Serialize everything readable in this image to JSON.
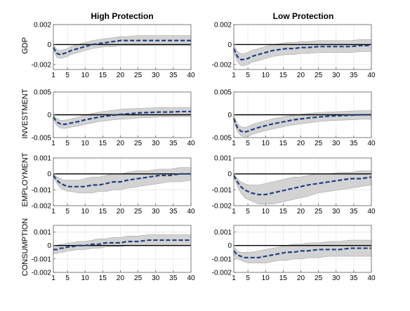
{
  "columns": [
    {
      "title": "High Protection"
    },
    {
      "title": "Low Protection"
    }
  ],
  "rows": [
    {
      "label": "GDP"
    },
    {
      "label": "INVESTMENT"
    },
    {
      "label": "EMPLOYMENT"
    },
    {
      "label": "CONSUMPTION"
    }
  ],
  "colors": {
    "band": "#d3d3d3",
    "band_edge": "#a9a9a9",
    "line": "#1f3f80",
    "zero_line": "#000000",
    "grid": "#e6e6e6",
    "axis": "#606060"
  },
  "chart_data": [
    {
      "type": "area",
      "panel": "GDP / High Protection",
      "row": 0,
      "col": 0,
      "xlim": [
        1,
        40
      ],
      "ylim": [
        -0.0025,
        0.002
      ],
      "xticks": [
        1,
        5,
        10,
        15,
        20,
        25,
        30,
        35,
        40
      ],
      "yticks": [
        -0.002,
        0,
        0.002
      ],
      "ytick_labels": [
        "-0.002",
        "0",
        "0.002"
      ],
      "grid": true,
      "x": [
        1,
        2,
        3,
        4,
        5,
        6,
        8,
        10,
        12,
        14,
        16,
        18,
        20,
        22,
        25,
        28,
        31,
        34,
        37,
        40
      ],
      "series": [
        {
          "role": "median",
          "values": [
            -0.0003,
            -0.0009,
            -0.001,
            -0.0009,
            -0.0008,
            -0.0006,
            -0.0004,
            -0.0002,
            0.0,
            0.0001,
            0.0002,
            0.0003,
            0.0004,
            0.0004,
            0.0004,
            0.0004,
            0.0004,
            0.0004,
            0.0004,
            0.0004
          ]
        },
        {
          "role": "upper",
          "values": [
            0.0,
            -0.0005,
            -0.0006,
            -0.0005,
            -0.0004,
            -0.0002,
            0.0,
            0.0002,
            0.0004,
            0.0005,
            0.0006,
            0.0007,
            0.0008,
            0.0008,
            0.0009,
            0.0009,
            0.0009,
            0.0009,
            0.0009,
            0.0009
          ]
        },
        {
          "role": "lower",
          "values": [
            -0.0006,
            -0.0013,
            -0.0014,
            -0.0013,
            -0.0012,
            -0.001,
            -0.0008,
            -0.0006,
            -0.0004,
            -0.0003,
            -0.0002,
            -0.0002,
            -0.0001,
            -0.0001,
            -0.0001,
            -0.0001,
            -0.0001,
            -0.0001,
            -0.0001,
            -0.0001
          ]
        }
      ]
    },
    {
      "type": "area",
      "panel": "GDP / Low Protection",
      "row": 0,
      "col": 1,
      "xlim": [
        1,
        40
      ],
      "ylim": [
        -0.0025,
        0.002
      ],
      "xticks": [
        1,
        5,
        10,
        15,
        20,
        25,
        30,
        35,
        40
      ],
      "yticks": [
        -0.002,
        0,
        0.002
      ],
      "ytick_labels": [
        "-0.002",
        "0",
        "0.002"
      ],
      "grid": true,
      "x": [
        1,
        2,
        3,
        4,
        5,
        6,
        8,
        10,
        12,
        14,
        16,
        18,
        20,
        22,
        25,
        28,
        31,
        34,
        37,
        40
      ],
      "series": [
        {
          "role": "median",
          "values": [
            -0.0004,
            -0.0012,
            -0.0015,
            -0.0015,
            -0.0014,
            -0.0012,
            -0.001,
            -0.0008,
            -0.0006,
            -0.0005,
            -0.0004,
            -0.0004,
            -0.0003,
            -0.0003,
            -0.0002,
            -0.0002,
            -0.0002,
            -0.0002,
            -0.0001,
            -0.0001
          ]
        },
        {
          "role": "upper",
          "values": [
            0.0,
            -0.0007,
            -0.0009,
            -0.0009,
            -0.0008,
            -0.0006,
            -0.0004,
            -0.0002,
            0.0,
            0.0001,
            0.0002,
            0.0002,
            0.0003,
            0.0003,
            0.0004,
            0.0004,
            0.0004,
            0.0004,
            0.0005,
            0.0005
          ]
        },
        {
          "role": "lower",
          "values": [
            -0.0008,
            -0.0017,
            -0.0021,
            -0.0021,
            -0.002,
            -0.0018,
            -0.0016,
            -0.0014,
            -0.0012,
            -0.0011,
            -0.001,
            -0.001,
            -0.0009,
            -0.0009,
            -0.0008,
            -0.0008,
            -0.0008,
            -0.0008,
            -0.0007,
            -0.0007
          ]
        }
      ]
    },
    {
      "type": "area",
      "panel": "INVESTMENT / High Protection",
      "row": 1,
      "col": 0,
      "xlim": [
        1,
        40
      ],
      "ylim": [
        -0.005,
        0.005
      ],
      "xticks": [
        1,
        5,
        10,
        15,
        20,
        25,
        30,
        35,
        40
      ],
      "yticks": [
        -0.005,
        0,
        0.005
      ],
      "ytick_labels": [
        "-0.005",
        "0",
        "0.005"
      ],
      "grid": true,
      "x": [
        1,
        2,
        3,
        4,
        5,
        6,
        8,
        10,
        12,
        14,
        16,
        18,
        20,
        22,
        25,
        28,
        31,
        34,
        37,
        40
      ],
      "series": [
        {
          "role": "median",
          "values": [
            -0.0005,
            -0.0016,
            -0.002,
            -0.0021,
            -0.002,
            -0.0018,
            -0.0015,
            -0.0011,
            -0.0008,
            -0.0005,
            -0.0003,
            -0.0001,
            0.0001,
            0.0002,
            0.0004,
            0.0005,
            0.0006,
            0.0006,
            0.0007,
            0.0007
          ]
        },
        {
          "role": "upper",
          "values": [
            0.0,
            -0.0008,
            -0.0012,
            -0.0012,
            -0.0011,
            -0.0009,
            -0.0005,
            -0.0001,
            0.0003,
            0.0006,
            0.0008,
            0.001,
            0.0012,
            0.0013,
            0.0014,
            0.0015,
            0.0016,
            0.0016,
            0.0016,
            0.0016
          ]
        },
        {
          "role": "lower",
          "values": [
            -0.001,
            -0.0024,
            -0.0029,
            -0.003,
            -0.0029,
            -0.0027,
            -0.0025,
            -0.0021,
            -0.0018,
            -0.0015,
            -0.0013,
            -0.0011,
            -0.001,
            -0.0009,
            -0.0007,
            -0.0006,
            -0.0005,
            -0.0005,
            -0.0004,
            -0.0004
          ]
        }
      ]
    },
    {
      "type": "area",
      "panel": "INVESTMENT / Low Protection",
      "row": 1,
      "col": 1,
      "xlim": [
        1,
        40
      ],
      "ylim": [
        -0.005,
        0.005
      ],
      "xticks": [
        1,
        5,
        10,
        15,
        20,
        25,
        30,
        35,
        40
      ],
      "yticks": [
        -0.005,
        0,
        0.005
      ],
      "ytick_labels": [
        "-0.005",
        "0",
        "0.005"
      ],
      "grid": true,
      "x": [
        1,
        2,
        3,
        4,
        5,
        6,
        8,
        10,
        12,
        14,
        16,
        18,
        20,
        22,
        25,
        28,
        31,
        34,
        37,
        40
      ],
      "series": [
        {
          "role": "median",
          "values": [
            -0.0008,
            -0.0028,
            -0.0036,
            -0.0038,
            -0.0036,
            -0.0033,
            -0.0028,
            -0.0024,
            -0.002,
            -0.0017,
            -0.0014,
            -0.0011,
            -0.0009,
            -0.0007,
            -0.0005,
            -0.0003,
            -0.0002,
            -0.0001,
            0.0,
            0.0
          ]
        },
        {
          "role": "upper",
          "values": [
            -0.0002,
            -0.0019,
            -0.0026,
            -0.0028,
            -0.0026,
            -0.0022,
            -0.0017,
            -0.0013,
            -0.0009,
            -0.0006,
            -0.0003,
            -0.0001,
            0.0001,
            0.0003,
            0.0005,
            0.0006,
            0.0007,
            0.0008,
            0.0009,
            0.0009
          ]
        },
        {
          "role": "lower",
          "values": [
            -0.0014,
            -0.0037,
            -0.0046,
            -0.0048,
            -0.0047,
            -0.0044,
            -0.0039,
            -0.0035,
            -0.0031,
            -0.0028,
            -0.0025,
            -0.0022,
            -0.002,
            -0.0018,
            -0.0015,
            -0.0013,
            -0.0012,
            -0.0011,
            -0.001,
            -0.001
          ]
        }
      ]
    },
    {
      "type": "area",
      "panel": "EMPLOYMENT / High Protection",
      "row": 2,
      "col": 0,
      "xlim": [
        1,
        40
      ],
      "ylim": [
        -0.002,
        0.001
      ],
      "xticks": [
        1,
        5,
        10,
        15,
        20,
        25,
        30,
        35,
        40
      ],
      "yticks": [
        -0.002,
        -0.001,
        0,
        0.001
      ],
      "ytick_labels": [
        "-0.002",
        "-0.001",
        "0",
        "0.001"
      ],
      "grid": true,
      "x": [
        1,
        2,
        3,
        4,
        5,
        6,
        8,
        10,
        12,
        14,
        16,
        18,
        20,
        22,
        25,
        28,
        31,
        34,
        37,
        40
      ],
      "series": [
        {
          "role": "median",
          "values": [
            -0.0001,
            -0.0004,
            -0.0006,
            -0.0007,
            -0.0008,
            -0.0008,
            -0.0008,
            -0.0008,
            -0.0007,
            -0.0007,
            -0.0006,
            -0.0005,
            -0.0005,
            -0.0004,
            -0.0003,
            -0.0002,
            -0.0001,
            -0.0001,
            0.0,
            0.0
          ]
        },
        {
          "role": "upper",
          "values": [
            0.0,
            -0.0002,
            -0.0003,
            -0.0004,
            -0.0004,
            -0.0004,
            -0.0004,
            -0.0003,
            -0.0002,
            -0.0002,
            -0.0001,
            0.0,
            0.0,
            0.0001,
            0.0002,
            0.0002,
            0.0003,
            0.0003,
            0.0004,
            0.0004
          ]
        },
        {
          "role": "lower",
          "values": [
            -0.0002,
            -0.0006,
            -0.0009,
            -0.001,
            -0.0011,
            -0.0011,
            -0.0012,
            -0.0012,
            -0.0012,
            -0.0011,
            -0.0011,
            -0.001,
            -0.001,
            -0.0009,
            -0.0008,
            -0.0007,
            -0.0006,
            -0.0005,
            -0.0005,
            -0.0004
          ]
        }
      ]
    },
    {
      "type": "area",
      "panel": "EMPLOYMENT / Low Protection",
      "row": 2,
      "col": 1,
      "xlim": [
        1,
        40
      ],
      "ylim": [
        -0.002,
        0.001
      ],
      "xticks": [
        1,
        5,
        10,
        15,
        20,
        25,
        30,
        35,
        40
      ],
      "yticks": [
        -0.002,
        -0.001,
        0,
        0.001
      ],
      "ytick_labels": [
        "-0.002",
        "-0.001",
        "0",
        "0.001"
      ],
      "grid": true,
      "x": [
        1,
        2,
        3,
        4,
        5,
        6,
        8,
        10,
        12,
        14,
        16,
        18,
        20,
        22,
        25,
        28,
        31,
        34,
        37,
        40
      ],
      "series": [
        {
          "role": "median",
          "values": [
            -0.0001,
            -0.0005,
            -0.0008,
            -0.001,
            -0.0011,
            -0.0012,
            -0.0013,
            -0.0013,
            -0.0012,
            -0.0011,
            -0.001,
            -0.0009,
            -0.0008,
            -0.0007,
            -0.0006,
            -0.0005,
            -0.0004,
            -0.0003,
            -0.0003,
            -0.0002
          ]
        },
        {
          "role": "upper",
          "values": [
            0.0,
            -0.0003,
            -0.0005,
            -0.0006,
            -0.0007,
            -0.0007,
            -0.0007,
            -0.0006,
            -0.0005,
            -0.0004,
            -0.0003,
            -0.0002,
            -0.0002,
            -0.0001,
            0.0,
            0.0,
            0.0001,
            0.0001,
            0.0002,
            0.0002
          ]
        },
        {
          "role": "lower",
          "values": [
            -0.0002,
            -0.0008,
            -0.0012,
            -0.0015,
            -0.0016,
            -0.0017,
            -0.0019,
            -0.0019,
            -0.0019,
            -0.0018,
            -0.0017,
            -0.0016,
            -0.0015,
            -0.0014,
            -0.0012,
            -0.0011,
            -0.001,
            -0.0009,
            -0.0008,
            -0.0007
          ]
        }
      ]
    },
    {
      "type": "area",
      "panel": "CONSUMPTION / High Protection",
      "row": 3,
      "col": 0,
      "xlim": [
        1,
        40
      ],
      "ylim": [
        -0.002,
        0.0015
      ],
      "xticks": [
        1,
        5,
        10,
        15,
        20,
        25,
        30,
        35,
        40
      ],
      "yticks": [
        -0.002,
        -0.001,
        0,
        0.001
      ],
      "ytick_labels": [
        "-0.002",
        "-0.001",
        "0",
        "0.001"
      ],
      "grid": true,
      "x": [
        1,
        2,
        3,
        4,
        5,
        6,
        8,
        10,
        12,
        14,
        16,
        18,
        20,
        22,
        25,
        28,
        31,
        34,
        37,
        40
      ],
      "series": [
        {
          "role": "median",
          "values": [
            -0.0003,
            -0.0003,
            -0.0002,
            -0.0002,
            -0.0001,
            -0.0001,
            0.0,
            0.0,
            0.0001,
            0.0001,
            0.0002,
            0.0002,
            0.0002,
            0.0003,
            0.0003,
            0.0004,
            0.0004,
            0.0004,
            0.0004,
            0.0004
          ]
        },
        {
          "role": "upper",
          "values": [
            0.0,
            0.0,
            0.0001,
            0.0001,
            0.0002,
            0.0002,
            0.0003,
            0.0003,
            0.0004,
            0.0005,
            0.0005,
            0.0006,
            0.0006,
            0.0007,
            0.0007,
            0.0008,
            0.0008,
            0.0008,
            0.0008,
            0.0008
          ]
        },
        {
          "role": "lower",
          "values": [
            -0.0006,
            -0.0006,
            -0.0005,
            -0.0005,
            -0.0004,
            -0.0004,
            -0.0003,
            -0.0003,
            -0.0002,
            -0.0002,
            -0.0001,
            -0.0001,
            -0.0001,
            0.0,
            0.0,
            0.0,
            0.0,
            0.0,
            0.0,
            0.0
          ]
        }
      ]
    },
    {
      "type": "area",
      "panel": "CONSUMPTION / Low Protection",
      "row": 3,
      "col": 1,
      "xlim": [
        1,
        40
      ],
      "ylim": [
        -0.002,
        0.0015
      ],
      "xticks": [
        1,
        5,
        10,
        15,
        20,
        25,
        30,
        35,
        40
      ],
      "yticks": [
        -0.002,
        -0.001,
        0,
        0.001
      ],
      "ytick_labels": [
        "-0.002",
        "-0.001",
        "0",
        "0.001"
      ],
      "grid": true,
      "x": [
        1,
        2,
        3,
        4,
        5,
        6,
        8,
        10,
        12,
        14,
        16,
        18,
        20,
        22,
        25,
        28,
        31,
        34,
        37,
        40
      ],
      "series": [
        {
          "role": "median",
          "values": [
            -0.0004,
            -0.0007,
            -0.0008,
            -0.0009,
            -0.0009,
            -0.0009,
            -0.0009,
            -0.0008,
            -0.0007,
            -0.0006,
            -0.0005,
            -0.0005,
            -0.0004,
            -0.0004,
            -0.0003,
            -0.0003,
            -0.0003,
            -0.0002,
            -0.0002,
            -0.0002
          ]
        },
        {
          "role": "upper",
          "values": [
            -0.0001,
            -0.0004,
            -0.0005,
            -0.0005,
            -0.0005,
            -0.0005,
            -0.0004,
            -0.0003,
            -0.0002,
            -0.0001,
            0.0,
            0.0001,
            0.0001,
            0.0002,
            0.0002,
            0.0003,
            0.0003,
            0.0004,
            0.0004,
            0.0004
          ]
        },
        {
          "role": "lower",
          "values": [
            -0.0007,
            -0.001,
            -0.0011,
            -0.0012,
            -0.0013,
            -0.0013,
            -0.0013,
            -0.0013,
            -0.0012,
            -0.0011,
            -0.0011,
            -0.001,
            -0.001,
            -0.0009,
            -0.0009,
            -0.0008,
            -0.0008,
            -0.0008,
            -0.0008,
            -0.0008
          ]
        }
      ]
    }
  ]
}
